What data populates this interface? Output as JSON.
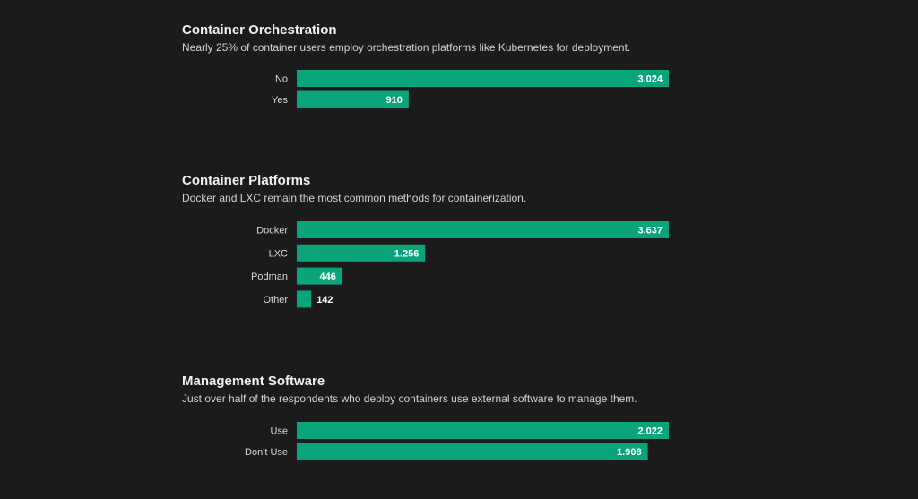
{
  "colors": {
    "background": "#1b1b1b",
    "bar": "#0aa47a",
    "label_inside": "#ffffff",
    "label_outside": "#ffffff"
  },
  "chart_data": [
    {
      "type": "bar",
      "orientation": "horizontal",
      "title": "Container Orchestration",
      "subtitle": "Nearly 25% of container users employ orchestration platforms like Kubernetes for deployment.",
      "categories": [
        "No",
        "Yes"
      ],
      "values": [
        3024,
        910
      ],
      "value_labels": [
        "3.024",
        "910"
      ],
      "xlim": [
        0,
        3024
      ],
      "grid": false,
      "legend": "none"
    },
    {
      "type": "bar",
      "orientation": "horizontal",
      "title": "Container Platforms",
      "subtitle": "Docker and LXC remain the most common methods for containerization.",
      "categories": [
        "Docker",
        "LXC",
        "Podman",
        "Other"
      ],
      "values": [
        3637,
        1256,
        446,
        142
      ],
      "value_labels": [
        "3.637",
        "1.256",
        "446",
        "142"
      ],
      "xlim": [
        0,
        3637
      ],
      "grid": false,
      "legend": "none"
    },
    {
      "type": "bar",
      "orientation": "horizontal",
      "title": "Management Software",
      "subtitle": "Just over half of the respondents who deploy containers use external software to manage them.",
      "categories": [
        "Use",
        "Don't Use"
      ],
      "values": [
        2022,
        1908
      ],
      "value_labels": [
        "2.022",
        "1.908"
      ],
      "xlim": [
        0,
        2022
      ],
      "grid": false,
      "legend": "none"
    }
  ]
}
